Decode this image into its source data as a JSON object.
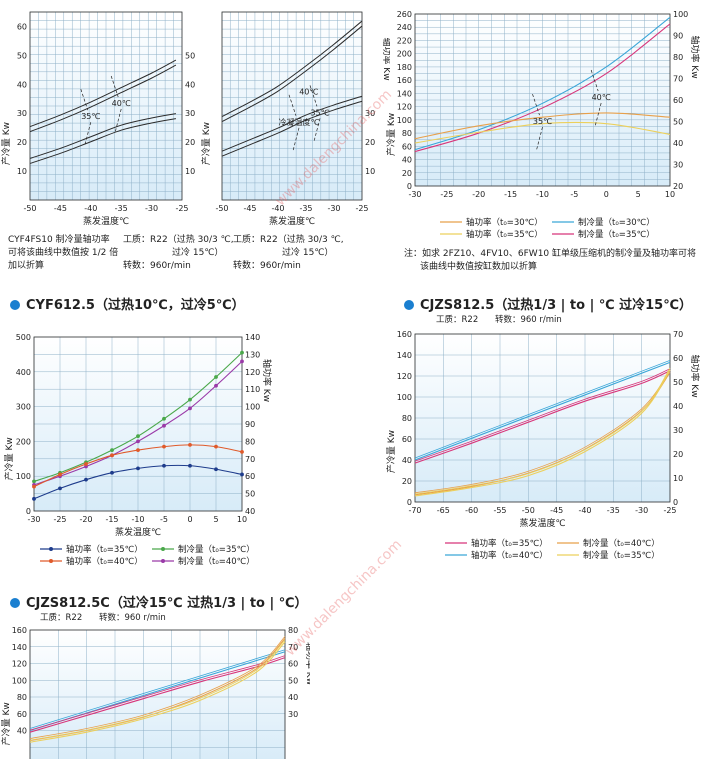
{
  "top_notes": {
    "left_title": "CYF4FS10  制冷量轴功率",
    "left_note": "可将该曲线中数值按 1/2 倍",
    "left_note2": "加以折算",
    "refrigerant_a": "工质：R22（过热 30/3 ℃,",
    "subcool_a": "过冷 15℃）",
    "speed_a": "转数：960r/min",
    "refrigerant_b": "工质：R22（过热 30/3 ℃,",
    "subcool_b": "过冷 15℃）",
    "speed_b": "转数：960r/min",
    "right_note1": "注：如求 2FZ10、4FV10、6FW10 缸单级压缩机的制冷量及轴功率可将",
    "right_note2": "该曲线中数值按缸数加以折算"
  },
  "sections": {
    "cyf612": {
      "heading": "CYF612.5（过热10℃，过冷5℃）"
    },
    "cjzs812": {
      "heading": "CJZS812.5（过热1/3 | to | ℃  过冷15℃）",
      "refrigerant": "工质：R22",
      "speed": "转数：960 r/min"
    },
    "cjzs812c": {
      "heading": "CJZS812.5C（过冷15℃  过热1/3 | to | ℃）",
      "refrigerant": "工质：R22",
      "speed": "转数：960 r/min"
    }
  },
  "watermark": "www.dalengchina.com",
  "colors": {
    "grid_bg": "#d7ebf8",
    "grid_line": "#8fb1c8",
    "axis": "#333333",
    "dark_curve": "#2b2b2b",
    "pink": "#d8357a",
    "cyan": "#3aa6d8",
    "orange": "#e8a04a",
    "yellow": "#ecd05c",
    "navy": "#1e3c8c",
    "green": "#4aa84a",
    "purple": "#9a3aa8",
    "red_orange": "#e05a2a",
    "heading_dot": "#1a7fd0"
  },
  "chart_data": [
    {
      "id": "A",
      "type": "line",
      "xlabel": "蒸发温度℃",
      "ylabel_left": "产冷量 Kw",
      "ylabel_right": "轴功率 Kw",
      "xlim": [
        -50,
        -25
      ],
      "ylim": [
        0,
        65
      ],
      "y2lim": [
        0,
        65
      ],
      "x_ticks": [
        -50,
        -45,
        -40,
        -35,
        -30,
        -25
      ],
      "y_ticks": [
        10,
        20,
        30,
        40,
        50,
        60
      ],
      "y2_ticks": [
        10,
        20,
        30,
        40,
        50
      ],
      "annotations": [
        "35℃",
        "40℃"
      ],
      "series": [
        {
          "style": "double-dark",
          "x": [
            -50,
            -45,
            -40,
            -35,
            -30,
            -26
          ],
          "y": [
            24.5,
            28.5,
            33,
            38,
            43,
            47.5
          ]
        },
        {
          "style": "double-dark",
          "x": [
            -50,
            -45,
            -40,
            -35,
            -30,
            -26
          ],
          "y": [
            13.5,
            17,
            21,
            25,
            27.5,
            29
          ]
        }
      ]
    },
    {
      "id": "B",
      "type": "line",
      "xlabel": "蒸发温度℃",
      "ylabel_left": "产冷量 Kw",
      "ylabel_right": "轴功率 Kw",
      "xlim": [
        -50,
        -25
      ],
      "ylim": [
        0,
        65
      ],
      "y2lim": [
        0,
        65
      ],
      "x_ticks": [
        -50,
        -45,
        -40,
        -35,
        -30,
        -25
      ],
      "y_ticks": [],
      "y2_ticks": [
        10,
        20,
        30
      ],
      "annotations": [
        "冷凝温度℃",
        "35℃",
        "40℃"
      ],
      "series": [
        {
          "style": "double-dark",
          "x": [
            -50,
            -45,
            -40,
            -35,
            -30,
            -25
          ],
          "y": [
            28,
            33,
            38.5,
            45.5,
            53,
            61
          ]
        },
        {
          "style": "double-dark",
          "x": [
            -50,
            -45,
            -40,
            -35,
            -30,
            -25
          ],
          "y": [
            16,
            20,
            24,
            28.5,
            32,
            35
          ]
        }
      ]
    },
    {
      "id": "C",
      "type": "line",
      "xlabel": "",
      "ylabel_left": "产冷量 Kw",
      "ylabel_right": "轴功率 Kw",
      "xlim": [
        -30,
        10
      ],
      "ylim": [
        0,
        260
      ],
      "y2lim": [
        20,
        100
      ],
      "x_ticks": [
        -30,
        -25,
        -20,
        -15,
        -10,
        -5,
        0,
        5,
        10
      ],
      "y_ticks": [
        0,
        20,
        40,
        60,
        80,
        100,
        120,
        140,
        160,
        180,
        200,
        220,
        240,
        260
      ],
      "y2_ticks": [
        20,
        30,
        40,
        50,
        60,
        70,
        80,
        90,
        100
      ],
      "annotations": [
        "40℃",
        "35℃"
      ],
      "legend": [
        "轴功率（t₀=30℃）",
        "制冷量（t₀=30℃）",
        "轴功率（t₀=35℃）",
        "制冷量（t₀=35℃）"
      ],
      "series": [
        {
          "name": "制冷量（t₀=30℃）",
          "color": "cyan",
          "x": [
            -30,
            -20,
            -10,
            0,
            10
          ],
          "y": [
            55,
            85,
            125,
            180,
            255
          ]
        },
        {
          "name": "制冷量（t₀=35℃）",
          "color": "pink",
          "x": [
            -30,
            -20,
            -10,
            0,
            10
          ],
          "y": [
            52,
            80,
            118,
            170,
            245
          ]
        },
        {
          "name": "轴功率（t₀=30℃）",
          "color": "orange",
          "axis": "right",
          "x": [
            -30,
            -20,
            -10,
            0,
            10
          ],
          "y": [
            42,
            48,
            52,
            54,
            52
          ]
        },
        {
          "name": "轴功率（t₀=35℃）",
          "color": "yellow",
          "axis": "right",
          "x": [
            -30,
            -20,
            -10,
            0,
            10
          ],
          "y": [
            40,
            45,
            49,
            49,
            44
          ]
        }
      ]
    },
    {
      "id": "D",
      "type": "line",
      "xlabel": "蒸发温度℃",
      "ylabel_left": "产冷量 Kw",
      "ylabel_right": "轴功率 Kw",
      "xlim": [
        -30,
        10
      ],
      "ylim": [
        0,
        500
      ],
      "y2lim": [
        40,
        140
      ],
      "x_ticks": [
        -30,
        -25,
        -20,
        -15,
        -10,
        -5,
        0,
        5,
        10
      ],
      "y_ticks": [
        0,
        100,
        200,
        300,
        400,
        500
      ],
      "y2_ticks": [
        40,
        50,
        60,
        70,
        80,
        90,
        100,
        110,
        120,
        130,
        140
      ],
      "legend": [
        "轴功率（t₀=35℃）",
        "制冷量（t₀=35℃）",
        "轴功率（t₀=40℃）",
        "制冷量（t₀=40℃）"
      ],
      "series": [
        {
          "name": "制冷量（t₀=35℃）",
          "color": "green",
          "x": [
            -30,
            -25,
            -20,
            -15,
            -10,
            -5,
            0,
            5,
            10
          ],
          "y": [
            85,
            110,
            140,
            175,
            215,
            265,
            320,
            385,
            455
          ]
        },
        {
          "name": "制冷量（t₀=40℃）",
          "color": "purple",
          "x": [
            -30,
            -25,
            -20,
            -15,
            -10,
            -5,
            0,
            5,
            10
          ],
          "y": [
            75,
            100,
            128,
            160,
            200,
            245,
            295,
            360,
            430
          ]
        },
        {
          "name": "轴功率（t₀=40℃）",
          "color": "red_orange",
          "axis": "right",
          "x": [
            -30,
            -25,
            -20,
            -15,
            -10,
            -5,
            0,
            5,
            10
          ],
          "y": [
            54,
            61,
            67,
            72,
            75,
            77,
            78,
            77,
            74
          ]
        },
        {
          "name": "轴功率（t₀=35℃）",
          "color": "navy",
          "axis": "right",
          "x": [
            -30,
            -25,
            -20,
            -15,
            -10,
            -5,
            0,
            5,
            10
          ],
          "y": [
            47,
            53,
            58,
            62,
            64.5,
            66,
            66,
            64,
            61
          ]
        }
      ]
    },
    {
      "id": "E",
      "type": "line",
      "xlabel": "蒸发温度℃",
      "ylabel_left": "产冷量 Kw",
      "ylabel_right": "轴功率 Kw",
      "xlim": [
        -70,
        -25
      ],
      "ylim": [
        0,
        160
      ],
      "y2lim": [
        0,
        70
      ],
      "x_ticks": [
        -70,
        -65,
        -60,
        -55,
        -50,
        -45,
        -40,
        -35,
        -30,
        -25
      ],
      "y_ticks": [
        0,
        20,
        40,
        60,
        80,
        100,
        120,
        140,
        160
      ],
      "y2_ticks": [
        0,
        10,
        20,
        30,
        40,
        50,
        60,
        70
      ],
      "legend": [
        "轴功率（t₀=35℃）",
        "制冷量（t₀=40℃）",
        "轴功率（t₀=40℃）",
        "制冷量（t₀=35℃）"
      ],
      "series": [
        {
          "name": "轴功率（t₀=40℃）",
          "color": "cyan",
          "x": [
            -70,
            -25
          ],
          "y": [
            40,
            133
          ]
        },
        {
          "name": "轴功率（t₀=35℃）",
          "color": "pink",
          "x": [
            -70,
            -60,
            -50,
            -40,
            -30,
            -25
          ],
          "y": [
            37,
            56,
            76,
            96,
            113,
            125
          ]
        },
        {
          "name": "制冷量（t₀=40℃）",
          "color": "orange",
          "axis": "right",
          "x": [
            -70,
            -60,
            -50,
            -40,
            -30,
            -25
          ],
          "y": [
            3,
            6.5,
            12,
            22,
            38,
            54
          ]
        },
        {
          "name": "制冷量（t₀=35℃）",
          "color": "yellow",
          "axis": "right",
          "x": [
            -70,
            -60,
            -50,
            -40,
            -30,
            -25
          ],
          "y": [
            2.5,
            6,
            11,
            21,
            37,
            55
          ]
        }
      ]
    },
    {
      "id": "F",
      "type": "line",
      "xlabel": "",
      "ylabel_left": "产冷量 Kw",
      "ylabel_right": "轴功率 Kw",
      "xlim": [
        -70,
        -25
      ],
      "ylim": [
        0,
        160
      ],
      "y2lim": [
        0,
        80
      ],
      "x_ticks": [],
      "y_ticks": [
        40,
        60,
        80,
        100,
        120,
        140,
        160
      ],
      "y2_ticks": [
        30,
        40,
        50,
        60,
        70,
        80
      ],
      "series": [
        {
          "color": "cyan",
          "x": [
            -70,
            -25
          ],
          "y": [
            40,
            134
          ]
        },
        {
          "color": "pink",
          "x": [
            -70,
            -60,
            -50,
            -40,
            -30,
            -25
          ],
          "y": [
            38,
            58,
            78,
            98,
            116,
            127
          ]
        },
        {
          "color": "orange",
          "axis": "right",
          "x": [
            -70,
            -60,
            -50,
            -40,
            -30,
            -25
          ],
          "y": [
            14,
            20,
            28,
            40,
            57,
            75
          ]
        },
        {
          "color": "yellow",
          "axis": "right",
          "x": [
            -70,
            -60,
            -50,
            -40,
            -30,
            -25
          ],
          "y": [
            13,
            19,
            27,
            38,
            55,
            73
          ]
        }
      ]
    }
  ]
}
